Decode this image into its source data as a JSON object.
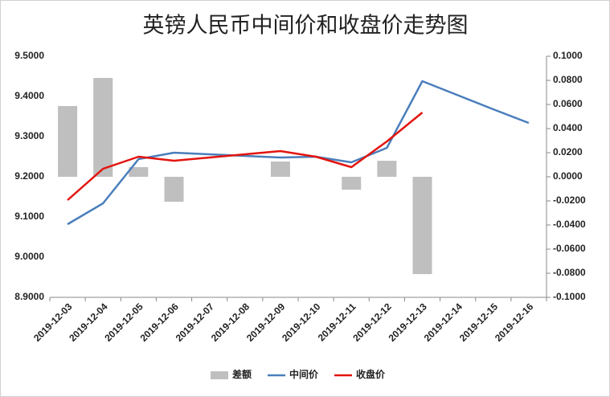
{
  "chart_data": {
    "type": "combo",
    "title": "英镑人民币中间价和收盘价走势图",
    "categories": [
      "2019-12-03",
      "2019-12-04",
      "2019-12-05",
      "2019-12-06",
      "2019-12-07",
      "2019-12-08",
      "2019-12-09",
      "2019-12-10",
      "2019-12-11",
      "2019-12-12",
      "2019-12-13",
      "2019-12-14",
      "2019-12-15",
      "2019-12-16"
    ],
    "series": [
      {
        "name": "差额",
        "type": "bar",
        "axis": "y2",
        "color": "#bfbfbf",
        "values": [
          0.0587,
          0.082,
          0.008,
          -0.0207,
          null,
          null,
          0.0127,
          0,
          -0.0107,
          0.0133,
          -0.0807,
          null,
          null,
          null
        ]
      },
      {
        "name": "中间价",
        "type": "line",
        "color": "#4a7ebb",
        "values": [
          9.082,
          9.134,
          9.244,
          9.26,
          9.256,
          9.252,
          9.248,
          9.25,
          9.236,
          9.272,
          9.438,
          9.403,
          9.368,
          9.334
        ]
      },
      {
        "name": "收盘价",
        "type": "line",
        "color": "#e3140f",
        "values": [
          9.142,
          9.22,
          9.25,
          9.24,
          9.248,
          9.256,
          9.264,
          9.25,
          9.224,
          9.288,
          9.36,
          null,
          null,
          null
        ]
      }
    ],
    "ylim": [
      8.9,
      9.5
    ],
    "yticks": [
      {
        "value": 8.9,
        "label": "8.9000"
      },
      {
        "value": 9.0,
        "label": "9.0000"
      },
      {
        "value": 9.1,
        "label": "9.1000"
      },
      {
        "value": 9.2,
        "label": "9.2000"
      },
      {
        "value": 9.3,
        "label": "9.3000"
      },
      {
        "value": 9.4,
        "label": "9.4000"
      },
      {
        "value": 9.5,
        "label": "9.5000"
      }
    ],
    "y2lim": [
      -0.1,
      0.1
    ],
    "y2ticks": [
      {
        "value": -0.1,
        "label": "-0.1000"
      },
      {
        "value": -0.08,
        "label": "-0.0800"
      },
      {
        "value": -0.06,
        "label": "-0.0600"
      },
      {
        "value": -0.04,
        "label": "-0.0400"
      },
      {
        "value": -0.02,
        "label": "-0.0200"
      },
      {
        "value": 0,
        "label": "0.0000"
      },
      {
        "value": 0.02,
        "label": "0.0200"
      },
      {
        "value": 0.04,
        "label": "0.0400"
      },
      {
        "value": 0.06,
        "label": "0.0600"
      },
      {
        "value": 0.08,
        "label": "0.0800"
      },
      {
        "value": 0.1,
        "label": "0.1000"
      }
    ],
    "grid": false
  }
}
